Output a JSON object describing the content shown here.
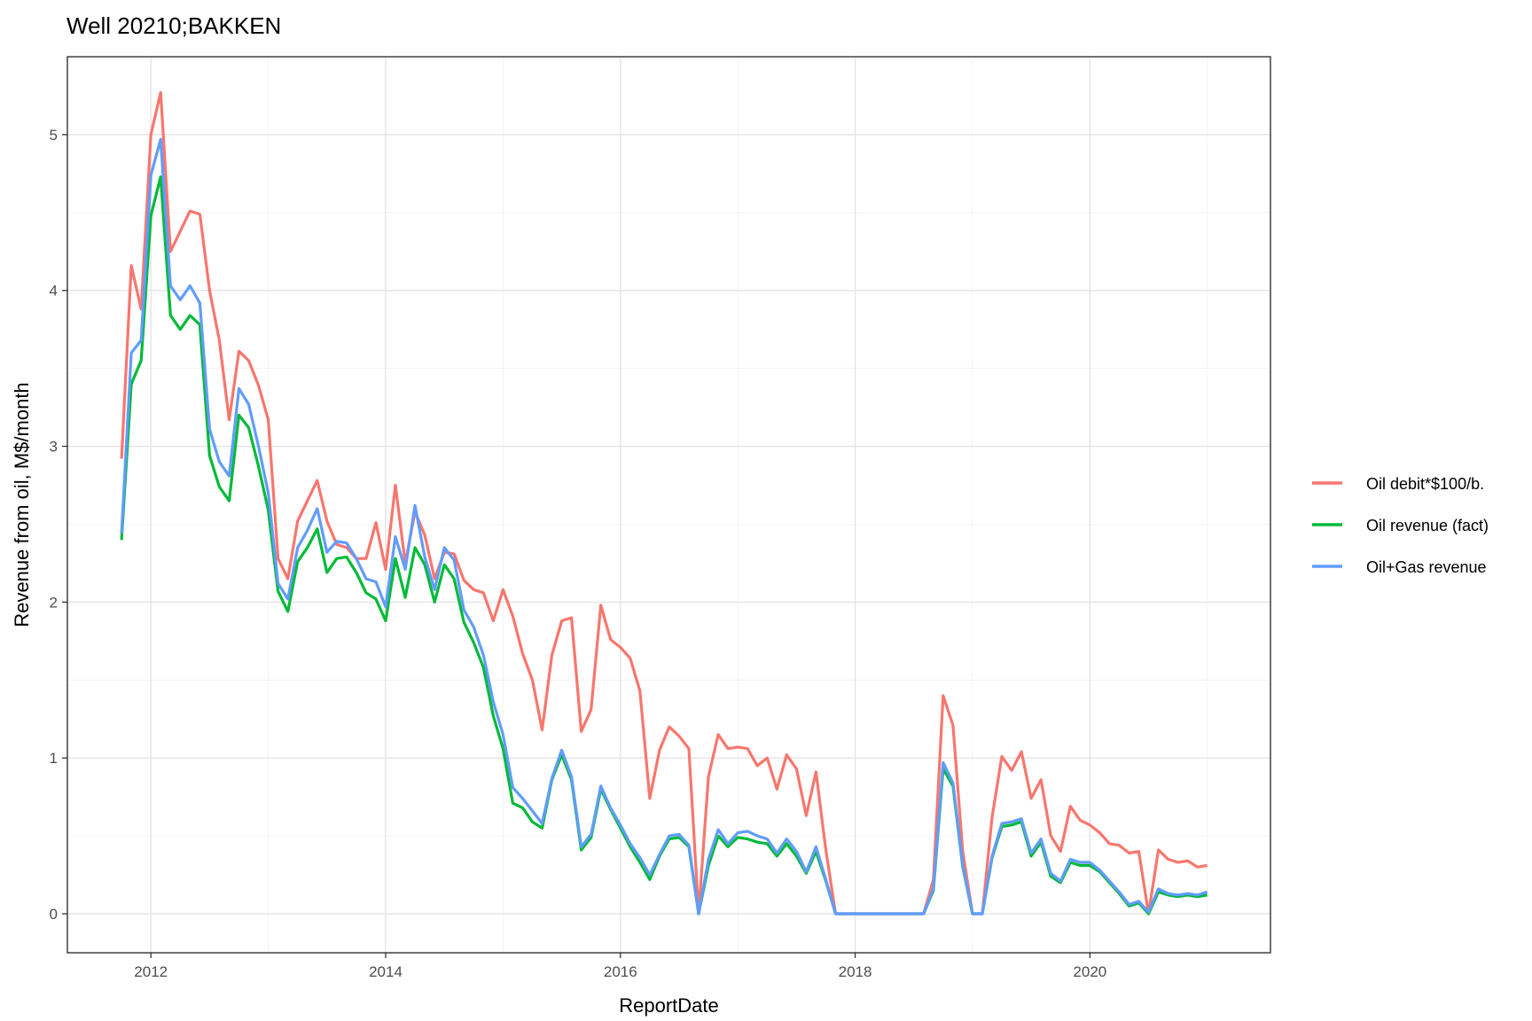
{
  "title": "Well 20210;BAKKEN",
  "chart_data": {
    "type": "line",
    "title": "Well 20210;BAKKEN",
    "xlabel": "ReportDate",
    "ylabel": "Revenue from oil, M$/month",
    "xlim": [
      "2011-04-15",
      "2021-07-15"
    ],
    "ylim": [
      -0.25,
      5.5
    ],
    "x_ticks": [
      "2012",
      "2014",
      "2016",
      "2018",
      "2020"
    ],
    "y_ticks": [
      "0",
      "1",
      "2",
      "3",
      "4",
      "5"
    ],
    "grid": true,
    "legend_position": "right",
    "x": [
      "2011-10",
      "2011-11",
      "2011-12",
      "2012-01",
      "2012-02",
      "2012-03",
      "2012-04",
      "2012-05",
      "2012-06",
      "2012-07",
      "2012-08",
      "2012-09",
      "2012-10",
      "2012-11",
      "2012-12",
      "2013-01",
      "2013-02",
      "2013-03",
      "2013-04",
      "2013-05",
      "2013-06",
      "2013-07",
      "2013-08",
      "2013-09",
      "2013-10",
      "2013-11",
      "2013-12",
      "2014-01",
      "2014-02",
      "2014-03",
      "2014-04",
      "2014-05",
      "2014-06",
      "2014-07",
      "2014-08",
      "2014-09",
      "2014-10",
      "2014-11",
      "2014-12",
      "2015-01",
      "2015-02",
      "2015-03",
      "2015-04",
      "2015-05",
      "2015-06",
      "2015-07",
      "2015-08",
      "2015-09",
      "2015-10",
      "2015-11",
      "2015-12",
      "2016-01",
      "2016-02",
      "2016-03",
      "2016-04",
      "2016-05",
      "2016-06",
      "2016-07",
      "2016-08",
      "2016-09",
      "2016-10",
      "2016-11",
      "2016-12",
      "2017-01",
      "2017-02",
      "2017-03",
      "2017-04",
      "2017-05",
      "2017-06",
      "2017-07",
      "2017-08",
      "2017-09",
      "2017-10",
      "2017-11",
      "2017-12",
      "2018-01",
      "2018-02",
      "2018-03",
      "2018-04",
      "2018-05",
      "2018-06",
      "2018-07",
      "2018-08",
      "2018-09",
      "2018-10",
      "2018-11",
      "2018-12",
      "2019-01",
      "2019-02",
      "2019-03",
      "2019-04",
      "2019-05",
      "2019-06",
      "2019-07",
      "2019-08",
      "2019-09",
      "2019-10",
      "2019-11",
      "2019-12",
      "2020-01",
      "2020-02",
      "2020-03",
      "2020-04",
      "2020-05",
      "2020-06",
      "2020-07",
      "2020-08",
      "2020-09",
      "2020-10",
      "2020-11",
      "2020-12",
      "2021-01"
    ],
    "series": [
      {
        "name": "Oil debit*$100/b.",
        "color": "#F8766D",
        "values": [
          2.92,
          4.16,
          3.88,
          5.0,
          5.27,
          4.25,
          4.38,
          4.51,
          4.49,
          4.0,
          3.68,
          3.17,
          3.61,
          3.55,
          3.39,
          3.17,
          2.28,
          2.15,
          2.52,
          2.65,
          2.78,
          2.52,
          2.37,
          2.35,
          2.28,
          2.28,
          2.51,
          2.21,
          2.75,
          2.25,
          2.58,
          2.43,
          2.15,
          2.32,
          2.31,
          2.14,
          2.08,
          2.06,
          1.88,
          2.08,
          1.91,
          1.67,
          1.5,
          1.18,
          1.66,
          1.88,
          1.9,
          1.17,
          1.31,
          1.98,
          1.76,
          1.71,
          1.64,
          1.43,
          0.74,
          1.05,
          1.2,
          1.14,
          1.06,
          0.0,
          0.88,
          1.15,
          1.06,
          1.07,
          1.06,
          0.95,
          1.0,
          0.8,
          1.02,
          0.93,
          0.63,
          0.91,
          0.41,
          0.0,
          0.0,
          0.0,
          0.0,
          0.0,
          0.0,
          0.0,
          0.0,
          0.0,
          0.0,
          0.22,
          1.4,
          1.21,
          0.4,
          0.0,
          0.0,
          0.62,
          1.01,
          0.92,
          1.04,
          0.74,
          0.86,
          0.5,
          0.4,
          0.69,
          0.6,
          0.57,
          0.52,
          0.45,
          0.44,
          0.39,
          0.4,
          0.0,
          0.41,
          0.35,
          0.33,
          0.34,
          0.3,
          0.31
        ]
      },
      {
        "name": "Oil revenue (fact)",
        "color": "#00BA38",
        "values": [
          2.4,
          3.4,
          3.55,
          4.48,
          4.73,
          3.84,
          3.75,
          3.84,
          3.78,
          2.94,
          2.74,
          2.65,
          3.2,
          3.12,
          2.87,
          2.59,
          2.07,
          1.94,
          2.26,
          2.35,
          2.47,
          2.19,
          2.28,
          2.29,
          2.19,
          2.06,
          2.02,
          1.88,
          2.28,
          2.03,
          2.35,
          2.24,
          2.0,
          2.24,
          2.15,
          1.87,
          1.74,
          1.58,
          1.27,
          1.06,
          0.71,
          0.68,
          0.59,
          0.55,
          0.86,
          1.02,
          0.86,
          0.41,
          0.49,
          0.8,
          0.67,
          0.55,
          0.43,
          0.33,
          0.22,
          0.37,
          0.48,
          0.49,
          0.43,
          0.0,
          0.31,
          0.5,
          0.43,
          0.49,
          0.48,
          0.46,
          0.45,
          0.37,
          0.45,
          0.37,
          0.26,
          0.4,
          0.21,
          0.0,
          0.0,
          0.0,
          0.0,
          0.0,
          0.0,
          0.0,
          0.0,
          0.0,
          0.0,
          0.15,
          0.93,
          0.82,
          0.3,
          0.0,
          0.0,
          0.36,
          0.56,
          0.57,
          0.59,
          0.37,
          0.46,
          0.24,
          0.2,
          0.33,
          0.31,
          0.31,
          0.27,
          0.2,
          0.13,
          0.05,
          0.07,
          0.0,
          0.14,
          0.12,
          0.11,
          0.12,
          0.11,
          0.12
        ]
      },
      {
        "name": "Oil+Gas revenue",
        "color": "#619CFF",
        "values": [
          2.44,
          3.6,
          3.68,
          4.74,
          4.97,
          4.03,
          3.94,
          4.03,
          3.92,
          3.11,
          2.9,
          2.81,
          3.37,
          3.27,
          3.0,
          2.7,
          2.12,
          2.02,
          2.35,
          2.46,
          2.6,
          2.32,
          2.39,
          2.38,
          2.28,
          2.15,
          2.13,
          1.97,
          2.42,
          2.21,
          2.62,
          2.29,
          2.08,
          2.35,
          2.27,
          1.95,
          1.84,
          1.66,
          1.36,
          1.15,
          0.81,
          0.74,
          0.66,
          0.58,
          0.87,
          1.05,
          0.88,
          0.43,
          0.51,
          0.82,
          0.68,
          0.57,
          0.45,
          0.36,
          0.25,
          0.38,
          0.5,
          0.51,
          0.44,
          0.0,
          0.35,
          0.54,
          0.45,
          0.52,
          0.53,
          0.5,
          0.48,
          0.39,
          0.48,
          0.4,
          0.27,
          0.43,
          0.22,
          0.0,
          0.0,
          0.0,
          0.0,
          0.0,
          0.0,
          0.0,
          0.0,
          0.0,
          0.0,
          0.16,
          0.97,
          0.84,
          0.31,
          0.0,
          0.0,
          0.37,
          0.58,
          0.59,
          0.61,
          0.39,
          0.48,
          0.26,
          0.21,
          0.35,
          0.33,
          0.33,
          0.28,
          0.21,
          0.14,
          0.06,
          0.08,
          0.01,
          0.16,
          0.13,
          0.12,
          0.13,
          0.12,
          0.14
        ]
      }
    ]
  }
}
